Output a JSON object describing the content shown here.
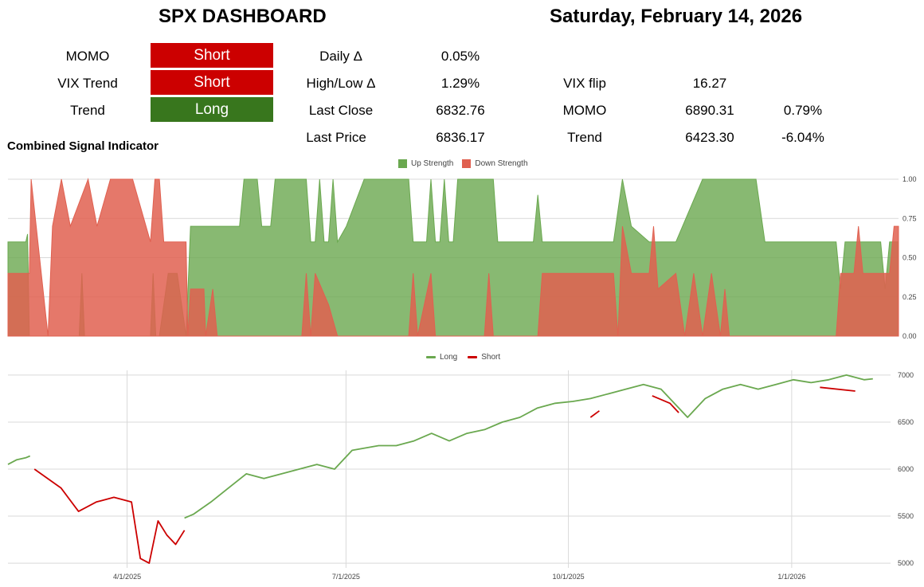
{
  "header": {
    "title": "SPX DASHBOARD",
    "date": "Saturday, February 14, 2026"
  },
  "signals": {
    "momo_label": "MOMO",
    "momo_value": "Short",
    "vix_trend_label": "VIX Trend",
    "vix_trend_value": "Short",
    "trend_label": "Trend",
    "trend_value": "Long"
  },
  "stats": {
    "daily_label": "Daily Δ",
    "daily_value": "0.05%",
    "highlow_label": "High/Low Δ",
    "highlow_value": "1.29%",
    "last_close_label": "Last Close",
    "last_close_value": "6832.76",
    "last_price_label": "Last Price",
    "last_price_value": "6836.17",
    "vix_flip_label": "VIX flip",
    "vix_flip_value": "16.27",
    "momo_label": "MOMO",
    "momo_level": "6890.31",
    "momo_pct": "0.79%",
    "trend_label": "Trend",
    "trend_level": "6423.30",
    "trend_pct": "-6.04%"
  },
  "colors": {
    "short": "#cc0000",
    "long": "#38761d",
    "up_fill": "#6aa84f",
    "down_fill": "#e06050",
    "line_long": "#6aa84f",
    "line_short": "#cc0000"
  },
  "chart_data": [
    {
      "type": "area",
      "title": "Combined Signal Indicator",
      "legend_position": "top",
      "ylim": [
        0,
        1
      ],
      "yticks": [
        "0.00",
        "0.25",
        "0.50",
        "0.75",
        "1.00"
      ],
      "grid": true,
      "series": [
        {
          "name": "Up Strength",
          "points": [
            [
              0,
              0.6
            ],
            [
              0.02,
              0.6
            ],
            [
              0.022,
              0.65
            ],
            [
              0.024,
              0
            ],
            [
              0.08,
              0
            ],
            [
              0.083,
              0.4
            ],
            [
              0.086,
              0
            ],
            [
              0.16,
              0
            ],
            [
              0.163,
              0.4
            ],
            [
              0.166,
              0
            ],
            [
              0.17,
              0
            ],
            [
              0.18,
              0.4
            ],
            [
              0.19,
              0.4
            ],
            [
              0.2,
              0
            ],
            [
              0.205,
              0.7
            ],
            [
              0.25,
              0.7
            ],
            [
              0.26,
              0.7
            ],
            [
              0.265,
              1
            ],
            [
              0.28,
              1
            ],
            [
              0.285,
              0.7
            ],
            [
              0.295,
              0.7
            ],
            [
              0.3,
              1
            ],
            [
              0.335,
              1
            ],
            [
              0.34,
              0.6
            ],
            [
              0.345,
              0.6
            ],
            [
              0.35,
              1
            ],
            [
              0.355,
              0.6
            ],
            [
              0.36,
              0.6
            ],
            [
              0.365,
              1
            ],
            [
              0.37,
              0.6
            ],
            [
              0.38,
              0.7
            ],
            [
              0.4,
              1
            ],
            [
              0.45,
              1
            ],
            [
              0.455,
              0.6
            ],
            [
              0.47,
              0.6
            ],
            [
              0.475,
              1
            ],
            [
              0.48,
              0.6
            ],
            [
              0.485,
              0.6
            ],
            [
              0.49,
              1
            ],
            [
              0.495,
              0.6
            ],
            [
              0.5,
              0.6
            ],
            [
              0.505,
              1
            ],
            [
              0.545,
              1
            ],
            [
              0.55,
              0.6
            ],
            [
              0.59,
              0.6
            ],
            [
              0.595,
              0.9
            ],
            [
              0.6,
              0.6
            ],
            [
              0.68,
              0.6
            ],
            [
              0.69,
              1
            ],
            [
              0.7,
              0.7
            ],
            [
              0.72,
              0.6
            ],
            [
              0.75,
              0.6
            ],
            [
              0.78,
              1
            ],
            [
              0.84,
              1
            ],
            [
              0.85,
              0.6
            ],
            [
              0.93,
              0.6
            ],
            [
              0.935,
              0.3
            ],
            [
              0.94,
              0.6
            ],
            [
              0.98,
              0.6
            ],
            [
              0.985,
              0.3
            ],
            [
              0.99,
              0.6
            ],
            [
              1,
              0.6
            ]
          ]
        },
        {
          "name": "Down Strength",
          "points": [
            [
              0,
              0.4
            ],
            [
              0.024,
              0.4
            ],
            [
              0.026,
              1
            ],
            [
              0.045,
              0
            ],
            [
              0.05,
              0.7
            ],
            [
              0.06,
              1
            ],
            [
              0.07,
              0.7
            ],
            [
              0.09,
              1
            ],
            [
              0.1,
              0.7
            ],
            [
              0.115,
              1
            ],
            [
              0.14,
              1
            ],
            [
              0.16,
              0.6
            ],
            [
              0.165,
              1
            ],
            [
              0.17,
              1
            ],
            [
              0.175,
              0.6
            ],
            [
              0.2,
              0.6
            ],
            [
              0.202,
              0
            ],
            [
              0.205,
              0.3
            ],
            [
              0.22,
              0.3
            ],
            [
              0.222,
              0
            ],
            [
              0.23,
              0.3
            ],
            [
              0.235,
              0
            ],
            [
              0.33,
              0
            ],
            [
              0.335,
              0.4
            ],
            [
              0.34,
              0
            ],
            [
              0.345,
              0.4
            ],
            [
              0.36,
              0.2
            ],
            [
              0.37,
              0
            ],
            [
              0.45,
              0
            ],
            [
              0.455,
              0.4
            ],
            [
              0.46,
              0
            ],
            [
              0.475,
              0.4
            ],
            [
              0.48,
              0
            ],
            [
              0.535,
              0
            ],
            [
              0.54,
              0.4
            ],
            [
              0.545,
              0
            ],
            [
              0.595,
              0
            ],
            [
              0.6,
              0.4
            ],
            [
              0.68,
              0.4
            ],
            [
              0.685,
              0
            ],
            [
              0.69,
              0.7
            ],
            [
              0.7,
              0.4
            ],
            [
              0.72,
              0.4
            ],
            [
              0.725,
              0.7
            ],
            [
              0.73,
              0.3
            ],
            [
              0.75,
              0.4
            ],
            [
              0.76,
              0
            ],
            [
              0.77,
              0.4
            ],
            [
              0.78,
              0
            ],
            [
              0.79,
              0.4
            ],
            [
              0.8,
              0
            ],
            [
              0.805,
              0.3
            ],
            [
              0.81,
              0
            ],
            [
              0.93,
              0
            ],
            [
              0.935,
              0.4
            ],
            [
              0.95,
              0.4
            ],
            [
              0.955,
              0.7
            ],
            [
              0.96,
              0.4
            ],
            [
              0.99,
              0.4
            ],
            [
              0.995,
              0.7
            ],
            [
              1,
              0.7
            ]
          ]
        }
      ]
    },
    {
      "type": "line",
      "title": "",
      "legend_position": "top",
      "ylim": [
        4950,
        7050
      ],
      "yticks": [
        "5000",
        "5500",
        "6000",
        "6500",
        "7000"
      ],
      "xticks": [
        "4/1/2025",
        "7/1/2025",
        "10/1/2025",
        "1/1/2026"
      ],
      "grid": true,
      "series": [
        {
          "name": "Long",
          "points": [
            [
              0,
              6050
            ],
            [
              0.01,
              6100
            ],
            [
              0.02,
              6120
            ],
            [
              0.025,
              6140
            ],
            [
              0.2,
              5480
            ],
            [
              0.21,
              5520
            ],
            [
              0.23,
              5650
            ],
            [
              0.25,
              5800
            ],
            [
              0.27,
              5950
            ],
            [
              0.29,
              5900
            ],
            [
              0.31,
              5950
            ],
            [
              0.33,
              6000
            ],
            [
              0.35,
              6050
            ],
            [
              0.37,
              6000
            ],
            [
              0.39,
              6200
            ],
            [
              0.42,
              6250
            ],
            [
              0.44,
              6250
            ],
            [
              0.46,
              6300
            ],
            [
              0.48,
              6380
            ],
            [
              0.5,
              6300
            ],
            [
              0.52,
              6380
            ],
            [
              0.54,
              6420
            ],
            [
              0.56,
              6500
            ],
            [
              0.58,
              6550
            ],
            [
              0.6,
              6650
            ],
            [
              0.62,
              6700
            ],
            [
              0.64,
              6720
            ],
            [
              0.66,
              6750
            ],
            [
              0.7,
              6850
            ],
            [
              0.72,
              6900
            ],
            [
              0.74,
              6850
            ],
            [
              0.77,
              6550
            ],
            [
              0.79,
              6750
            ],
            [
              0.81,
              6850
            ],
            [
              0.83,
              6900
            ],
            [
              0.85,
              6850
            ],
            [
              0.87,
              6900
            ],
            [
              0.89,
              6950
            ],
            [
              0.91,
              6920
            ],
            [
              0.93,
              6950
            ],
            [
              0.95,
              7000
            ],
            [
              0.97,
              6950
            ],
            [
              0.98,
              6960
            ]
          ]
        },
        {
          "name": "Short",
          "points": [
            [
              0.03,
              6000
            ],
            [
              0.06,
              5800
            ],
            [
              0.08,
              5550
            ],
            [
              0.1,
              5650
            ],
            [
              0.12,
              5700
            ],
            [
              0.14,
              5650
            ],
            [
              0.15,
              5050
            ],
            [
              0.16,
              5000
            ],
            [
              0.17,
              5450
            ],
            [
              0.18,
              5300
            ],
            [
              0.19,
              5200
            ],
            [
              0.2,
              5350
            ],
            [
              0.66,
              6550
            ],
            [
              0.67,
              6620
            ],
            [
              0.73,
              6780
            ],
            [
              0.75,
              6700
            ],
            [
              0.76,
              6600
            ],
            [
              0.92,
              6870
            ],
            [
              0.96,
              6830
            ]
          ]
        }
      ]
    }
  ]
}
